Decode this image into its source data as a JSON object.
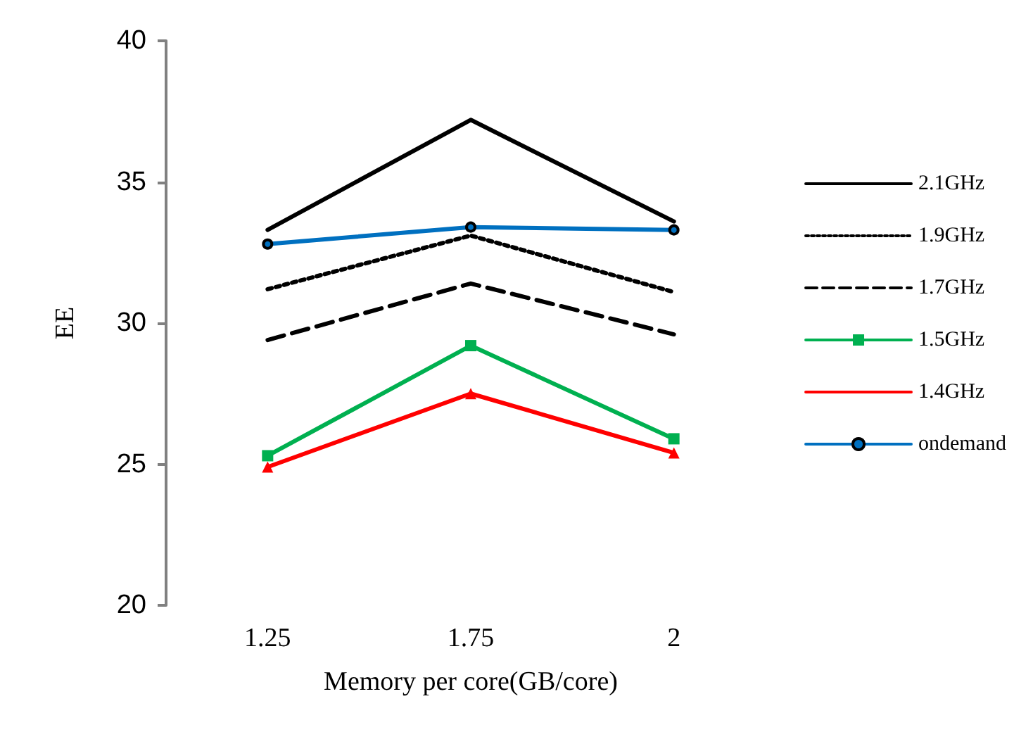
{
  "chart_data": {
    "type": "line",
    "xlabel": "Memory per core(GB/core)",
    "ylabel": "EE",
    "categories": [
      "1.25",
      "1.75",
      "2"
    ],
    "ylim": [
      20,
      40
    ],
    "yticks": [
      20,
      25,
      30,
      35,
      40
    ],
    "grid": false,
    "legend": "right",
    "series": [
      {
        "name": "2.1GHz",
        "color": "#000000",
        "values": [
          33.3,
          37.2,
          33.6
        ],
        "marker": "none",
        "line_style": "solid"
      },
      {
        "name": "1.9GHz",
        "color": "#000000",
        "values": [
          31.2,
          33.1,
          31.1
        ],
        "marker": "none",
        "line_style": "dotted"
      },
      {
        "name": "1.7GHz",
        "color": "#000000",
        "values": [
          29.4,
          31.4,
          29.6
        ],
        "marker": "none",
        "line_style": "dashed"
      },
      {
        "name": "1.5GHz",
        "color": "#00b050",
        "values": [
          25.3,
          29.2,
          25.9
        ],
        "marker": "square",
        "line_style": "solid"
      },
      {
        "name": "1.4GHz",
        "color": "#ff0000",
        "values": [
          24.9,
          27.5,
          25.4
        ],
        "marker": "triangle",
        "line_style": "solid"
      },
      {
        "name": "ondemand",
        "color": "#0070c0",
        "values": [
          32.8,
          33.4,
          33.3
        ],
        "marker": "circle",
        "line_style": "solid"
      }
    ]
  }
}
